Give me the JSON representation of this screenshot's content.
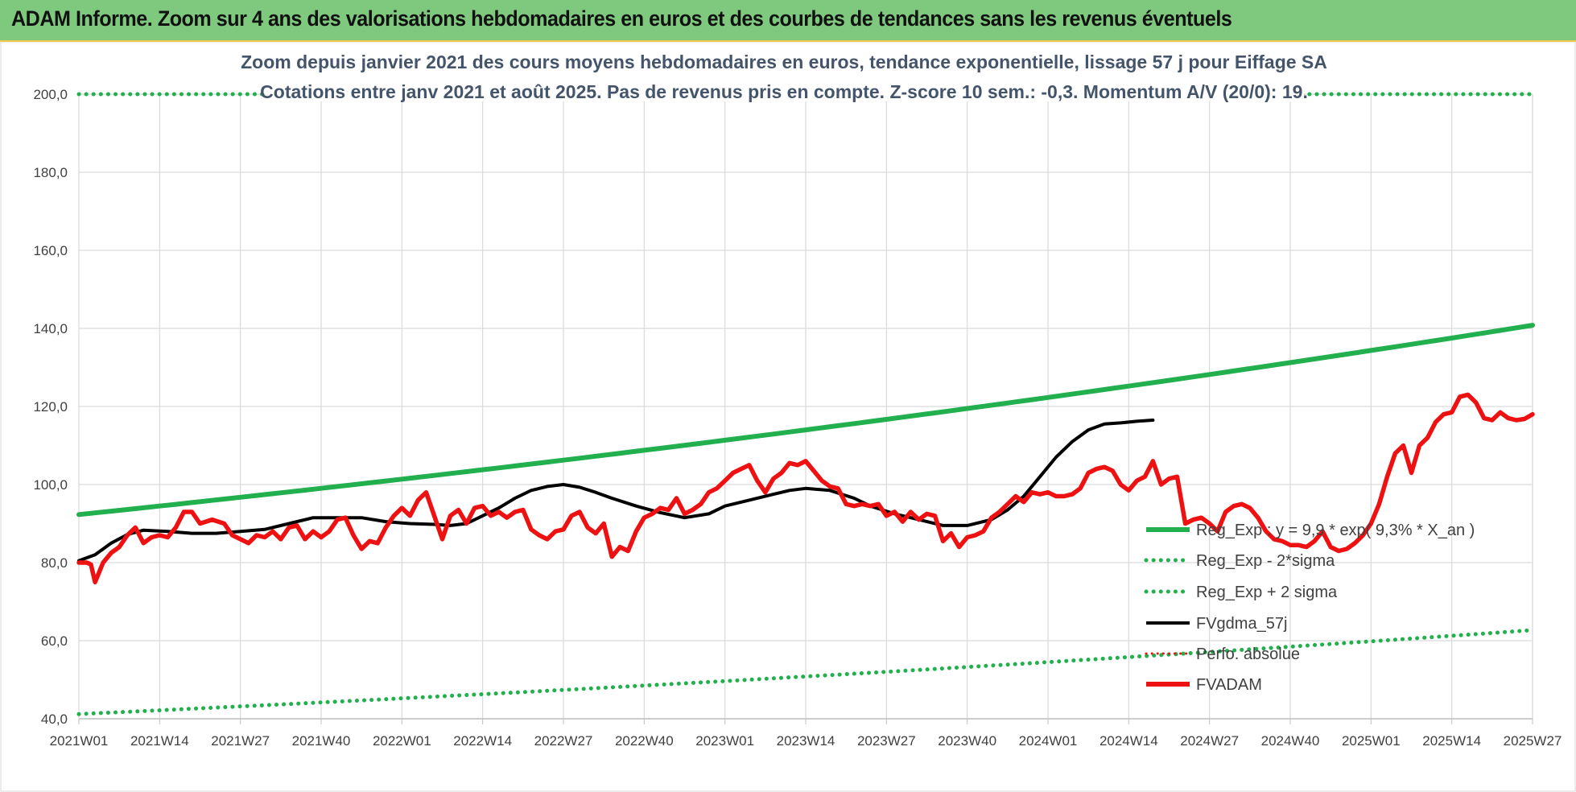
{
  "banner": {
    "title": "ADAM Informe. Zoom sur 4 ans des valorisations hebdomadaires en euros et des courbes de tendances sans les revenus éventuels"
  },
  "colors": {
    "banner_bg": "#7fc97f",
    "reg_exp": "#22b04f",
    "fvgdma": "#000000",
    "fvadam": "#ee1111",
    "perfo": "#ee1111",
    "grid": "#d9d9d9",
    "title_text": "#44546a"
  },
  "chart_data": {
    "type": "line",
    "title_lines": [
      "Zoom depuis janvier 2021 des cours moyens hebdomadaires en euros, tendance exponentielle, lissage 57 j pour Eiffage SA",
      "Cotations entre janv 2021 et août 2025.  Pas de revenus pris en compte. Z-score 10 sem.: -0,3. Momentum A/V (20/0): 19."
    ],
    "ylim": [
      40,
      200
    ],
    "y_ticks": [
      "40,0",
      "60,0",
      "80,0",
      "100,0",
      "120,0",
      "140,0",
      "160,0",
      "180,0",
      "200,0"
    ],
    "x_ticks": [
      "2021W01",
      "2021W14",
      "2021W27",
      "2021W40",
      "2022W01",
      "2022W14",
      "2022W27",
      "2022W40",
      "2023W01",
      "2023W14",
      "2023W27",
      "2023W40",
      "2024W01",
      "2024W14",
      "2024W27",
      "2024W40",
      "2025W01",
      "2025W14",
      "2025W27"
    ],
    "grid": "vertical and horizontal",
    "legend_position": "right, lower-middle",
    "series": [
      {
        "name": "Reg_Exp : y = 9,9 * exp( 9,3% *  X_an )",
        "style": "solid",
        "start": 92.3,
        "end": 140.8
      },
      {
        "name": "Reg_Exp - 2*sigma",
        "style": "dotted",
        "start": 41.2,
        "end": 62.7
      },
      {
        "name": "Reg_Exp + 2 sigma",
        "style": "dotted",
        "constant": 200
      },
      {
        "name": "FVgdma_57j",
        "style": "solid",
        "points": [
          [
            0,
            80.5
          ],
          [
            4,
            82
          ],
          [
            8,
            85
          ],
          [
            12,
            87.2
          ],
          [
            16,
            88.3
          ],
          [
            22,
            88
          ],
          [
            28,
            87.5
          ],
          [
            34,
            87.5
          ],
          [
            40,
            88
          ],
          [
            46,
            88.5
          ],
          [
            52,
            90
          ],
          [
            58,
            91.5
          ],
          [
            64,
            91.5
          ],
          [
            70,
            91.5
          ],
          [
            76,
            90.5
          ],
          [
            82,
            90
          ],
          [
            88,
            89.8
          ],
          [
            92,
            89.5
          ],
          [
            96,
            90
          ],
          [
            100,
            92
          ],
          [
            104,
            94
          ],
          [
            108,
            96.5
          ],
          [
            112,
            98.5
          ],
          [
            116,
            99.5
          ],
          [
            120,
            100
          ],
          [
            124,
            99.3
          ],
          [
            128,
            98
          ],
          [
            132,
            96.5
          ],
          [
            138,
            94.5
          ],
          [
            144,
            92.8
          ],
          [
            150,
            91.5
          ],
          [
            156,
            92.5
          ],
          [
            160,
            94.5
          ],
          [
            166,
            96
          ],
          [
            172,
            97.5
          ],
          [
            176,
            98.5
          ],
          [
            180,
            99
          ],
          [
            186,
            98.5
          ],
          [
            192,
            96.5
          ],
          [
            196,
            94.5
          ],
          [
            202,
            92.5
          ],
          [
            208,
            91
          ],
          [
            214,
            89.5
          ],
          [
            220,
            89.5
          ],
          [
            226,
            91
          ],
          [
            230,
            93.5
          ],
          [
            234,
            97
          ],
          [
            238,
            102
          ],
          [
            242,
            107
          ],
          [
            246,
            111
          ],
          [
            250,
            114
          ],
          [
            254,
            115.5
          ],
          [
            258,
            115.8
          ],
          [
            262,
            116.2
          ],
          [
            266,
            116.5
          ]
        ]
      },
      {
        "name": "Perfo. absolue",
        "style": "dotted",
        "hidden_in_plot": true
      },
      {
        "name": "FVADAM",
        "style": "solid",
        "points": [
          [
            0,
            80
          ],
          [
            2,
            80
          ],
          [
            3,
            79.5
          ],
          [
            4,
            75
          ],
          [
            6,
            80
          ],
          [
            8,
            82.5
          ],
          [
            10,
            84
          ],
          [
            12,
            87
          ],
          [
            14,
            89
          ],
          [
            16,
            85
          ],
          [
            18,
            86.5
          ],
          [
            20,
            87
          ],
          [
            22,
            86.5
          ],
          [
            24,
            89
          ],
          [
            26,
            93
          ],
          [
            28,
            93
          ],
          [
            30,
            90
          ],
          [
            33,
            91
          ],
          [
            36,
            90
          ],
          [
            38,
            87
          ],
          [
            40,
            86
          ],
          [
            42,
            85
          ],
          [
            44,
            87
          ],
          [
            46,
            86.5
          ],
          [
            48,
            88
          ],
          [
            50,
            86
          ],
          [
            52,
            89
          ],
          [
            54,
            89.5
          ],
          [
            56,
            86
          ],
          [
            58,
            88
          ],
          [
            60,
            86.5
          ],
          [
            62,
            88
          ],
          [
            64,
            91
          ],
          [
            66,
            91.5
          ],
          [
            68,
            87
          ],
          [
            70,
            83.5
          ],
          [
            72,
            85.5
          ],
          [
            74,
            85
          ],
          [
            76,
            89
          ],
          [
            78,
            92
          ],
          [
            80,
            94
          ],
          [
            82,
            92
          ],
          [
            84,
            96
          ],
          [
            86,
            98
          ],
          [
            88,
            92
          ],
          [
            90,
            86
          ],
          [
            92,
            92
          ],
          [
            94,
            93.5
          ],
          [
            96,
            90
          ],
          [
            98,
            94
          ],
          [
            100,
            94.5
          ],
          [
            102,
            92
          ],
          [
            104,
            93
          ],
          [
            106,
            91.5
          ],
          [
            108,
            93
          ],
          [
            110,
            93.5
          ],
          [
            112,
            88.5
          ],
          [
            114,
            87
          ],
          [
            116,
            86
          ],
          [
            118,
            88
          ],
          [
            120,
            88.5
          ],
          [
            122,
            92
          ],
          [
            124,
            93
          ],
          [
            126,
            89
          ],
          [
            128,
            87.5
          ],
          [
            130,
            90
          ],
          [
            132,
            81.5
          ],
          [
            134,
            84
          ],
          [
            136,
            83
          ],
          [
            138,
            88
          ],
          [
            140,
            91.5
          ],
          [
            142,
            92.5
          ],
          [
            144,
            94
          ],
          [
            146,
            93.5
          ],
          [
            148,
            96.5
          ],
          [
            150,
            92.5
          ],
          [
            152,
            93.5
          ],
          [
            154,
            95
          ],
          [
            156,
            98
          ],
          [
            158,
            99
          ],
          [
            160,
            101
          ],
          [
            162,
            103
          ],
          [
            164,
            104
          ],
          [
            166,
            105
          ],
          [
            168,
            101
          ],
          [
            170,
            98
          ],
          [
            172,
            101.5
          ],
          [
            174,
            103
          ],
          [
            176,
            105.5
          ],
          [
            178,
            105
          ],
          [
            180,
            106
          ],
          [
            182,
            103.5
          ],
          [
            184,
            101
          ],
          [
            186,
            99.5
          ],
          [
            188,
            99
          ],
          [
            190,
            95
          ],
          [
            192,
            94.5
          ],
          [
            194,
            95
          ],
          [
            196,
            94.5
          ],
          [
            198,
            95
          ],
          [
            200,
            92
          ],
          [
            202,
            93
          ],
          [
            204,
            90.5
          ],
          [
            206,
            93
          ],
          [
            208,
            91
          ],
          [
            210,
            92.5
          ],
          [
            212,
            92
          ],
          [
            214,
            85.5
          ],
          [
            216,
            87.5
          ],
          [
            218,
            84
          ],
          [
            220,
            86.5
          ],
          [
            222,
            87
          ],
          [
            224,
            88
          ],
          [
            226,
            91.5
          ],
          [
            228,
            93
          ],
          [
            230,
            95
          ],
          [
            232,
            97
          ],
          [
            234,
            95.5
          ],
          [
            236,
            98
          ],
          [
            238,
            97.5
          ],
          [
            240,
            98
          ],
          [
            242,
            97
          ],
          [
            244,
            97
          ],
          [
            246,
            97.5
          ],
          [
            248,
            99
          ],
          [
            250,
            103
          ],
          [
            252,
            104
          ],
          [
            254,
            104.5
          ],
          [
            256,
            103.5
          ],
          [
            258,
            100
          ],
          [
            260,
            98.5
          ],
          [
            262,
            101
          ],
          [
            264,
            102
          ],
          [
            266,
            106
          ],
          [
            268,
            100
          ],
          [
            270,
            101.5
          ],
          [
            272,
            102
          ],
          [
            274,
            90
          ],
          [
            276,
            91
          ],
          [
            278,
            91.5
          ],
          [
            280,
            90
          ],
          [
            282,
            88
          ],
          [
            284,
            93
          ],
          [
            286,
            94.5
          ],
          [
            288,
            95
          ],
          [
            290,
            94
          ],
          [
            292,
            91.5
          ],
          [
            294,
            88
          ],
          [
            296,
            86
          ],
          [
            298,
            85.5
          ],
          [
            300,
            84.5
          ],
          [
            302,
            84.5
          ],
          [
            304,
            84
          ],
          [
            306,
            85.5
          ],
          [
            308,
            88
          ],
          [
            310,
            84
          ],
          [
            312,
            83
          ],
          [
            314,
            83.5
          ],
          [
            316,
            85
          ],
          [
            318,
            87
          ],
          [
            320,
            90
          ],
          [
            322,
            95
          ],
          [
            324,
            102
          ],
          [
            326,
            108
          ],
          [
            328,
            110
          ],
          [
            330,
            103
          ],
          [
            332,
            110
          ],
          [
            334,
            112
          ],
          [
            336,
            116
          ],
          [
            338,
            118
          ],
          [
            340,
            118.5
          ],
          [
            342,
            122.5
          ],
          [
            344,
            123
          ],
          [
            346,
            121
          ],
          [
            348,
            117
          ],
          [
            350,
            116.5
          ],
          [
            352,
            118.5
          ],
          [
            354,
            117
          ],
          [
            356,
            116.5
          ],
          [
            358,
            116.8
          ],
          [
            360,
            118
          ]
        ]
      }
    ]
  }
}
